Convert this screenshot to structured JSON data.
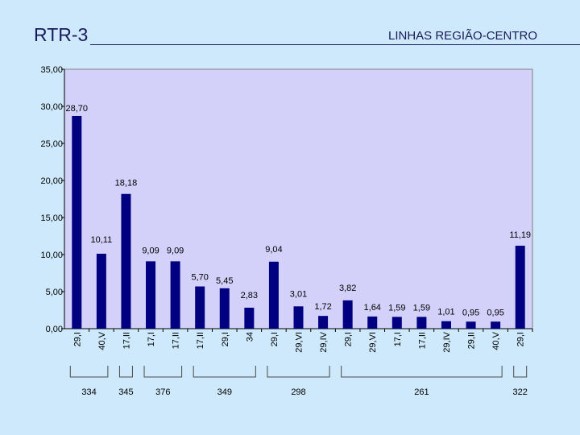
{
  "header": {
    "title": "RTR-3",
    "subtitle": "LINHAS REGIÃO-CENTRO"
  },
  "colors": {
    "background": "#cde9fb",
    "plot_background": "#d3d0fa",
    "bar": "#000080"
  },
  "chart_data": {
    "type": "bar",
    "title": "",
    "xlabel": "",
    "ylabel": "",
    "ylim": [
      0,
      35
    ],
    "yticks": [
      "0,00",
      "5,00",
      "10,00",
      "15,00",
      "20,00",
      "25,00",
      "30,00",
      "35,00"
    ],
    "grid": false,
    "categories": [
      "29,I",
      "40,V",
      "17,II",
      "17,I",
      "17,II",
      "17,II",
      "29,I",
      "34",
      "29,I",
      "29,VI",
      "29,IV",
      "29,I",
      "29,VI",
      "17,I",
      "17,II",
      "29,IV",
      "29,II",
      "40,V",
      "29,I"
    ],
    "values": [
      28.7,
      10.11,
      18.18,
      9.09,
      9.09,
      5.7,
      5.45,
      2.83,
      9.04,
      3.01,
      1.72,
      3.82,
      1.64,
      1.59,
      1.59,
      1.01,
      0.95,
      0.95,
      11.19
    ],
    "value_labels": [
      "28,70",
      "10,11",
      "18,18",
      "9,09",
      "9,09",
      "5,70",
      "5,45",
      "2,83",
      "9,04",
      "3,01",
      "1,72",
      "3,82",
      "1,64",
      "1,59",
      "1,59",
      "1,01",
      "0,95",
      "0,95",
      "11,19"
    ],
    "groups": [
      {
        "label": "334",
        "start": 0,
        "end": 1
      },
      {
        "label": "345",
        "start": 2,
        "end": 2
      },
      {
        "label": "376",
        "start": 3,
        "end": 4
      },
      {
        "label": "349",
        "start": 5,
        "end": 7
      },
      {
        "label": "298",
        "start": 8,
        "end": 10
      },
      {
        "label": "261",
        "start": 11,
        "end": 17
      },
      {
        "label": "322",
        "start": 18,
        "end": 18
      }
    ]
  }
}
